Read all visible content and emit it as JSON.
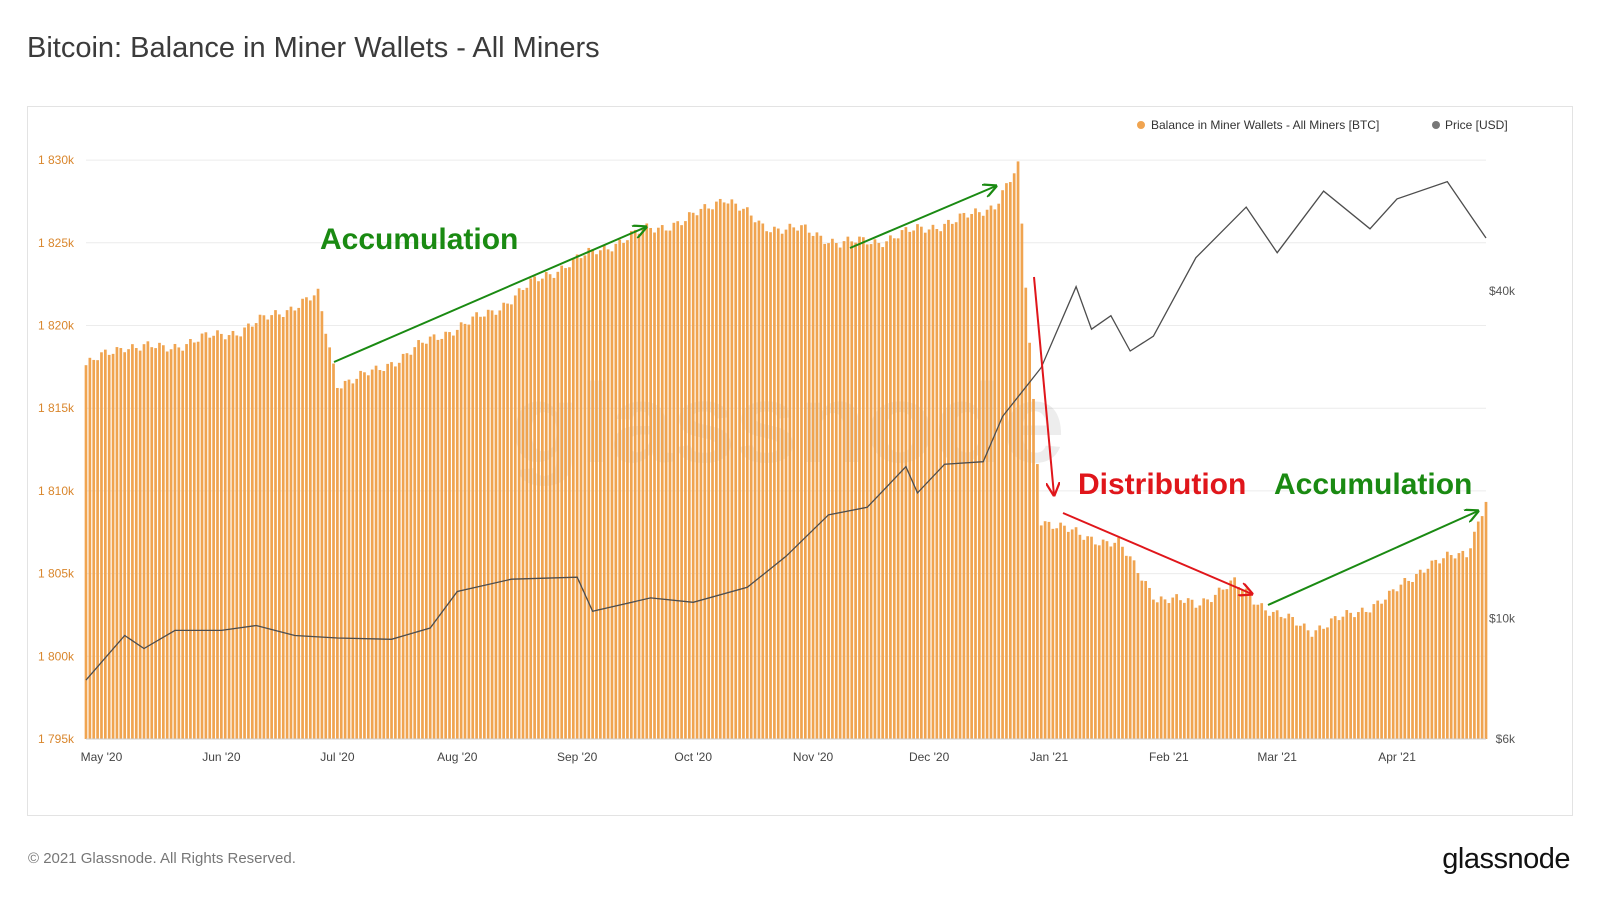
{
  "title": "Bitcoin: Balance in Miner Wallets - All Miners",
  "footer": "© 2021 Glassnode. All Rights Reserved.",
  "brand": "glassnode",
  "watermark": "glassnode",
  "annotations": [
    {
      "text": "Accumulation",
      "color": "#1a8a12"
    },
    {
      "text": "Distribution",
      "color": "#e0161b"
    },
    {
      "text": "Accumulation",
      "color": "#1a8a12"
    }
  ],
  "colors": {
    "bar": "#f0a450",
    "bar_label": "#d9862c",
    "price": "#4d4d4d",
    "accum": "#1a8a12",
    "distrib": "#e0161b"
  },
  "chart_data": {
    "type": "bar",
    "legend": [
      {
        "name": "Balance in Miner Wallets - All Miners [BTC]",
        "color": "#f0a450"
      },
      {
        "name": "Price [USD]",
        "color": "#777777"
      }
    ],
    "legend_position": "top-right",
    "grid": true,
    "x_ticks": [
      "May '20",
      "Jun '20",
      "Jul '20",
      "Aug '20",
      "Sep '20",
      "Oct '20",
      "Nov '20",
      "Dec '20",
      "Jan '21",
      "Feb '21",
      "Mar '21",
      "Apr '21"
    ],
    "y_left": {
      "ticks": [
        "1 795k",
        "1 800k",
        "1 805k",
        "1 810k",
        "1 815k",
        "1 820k",
        "1 825k",
        "1 830k"
      ],
      "ylim": [
        1795000,
        1832000
      ]
    },
    "y_right": {
      "ticks": [
        "$6k",
        "$10k",
        "$40k"
      ],
      "scale": "log",
      "ylim": [
        6000,
        80000
      ]
    },
    "x_range": [
      "2020-04-27",
      "2021-04-24"
    ],
    "series": [
      {
        "name": "Balance in Miner Wallets - All Miners [BTC]",
        "type": "bar",
        "points": [
          [
            "2020-04-27",
            1817600
          ],
          [
            "2020-05-07",
            1818800
          ],
          [
            "2020-05-17",
            1818600
          ],
          [
            "2020-05-27",
            1819200
          ],
          [
            "2020-06-06",
            1819700
          ],
          [
            "2020-06-16",
            1820800
          ],
          [
            "2020-06-26",
            1821800
          ],
          [
            "2020-07-01",
            1816500
          ],
          [
            "2020-07-11",
            1817200
          ],
          [
            "2020-07-21",
            1818600
          ],
          [
            "2020-07-31",
            1819800
          ],
          [
            "2020-08-10",
            1820800
          ],
          [
            "2020-08-20",
            1822500
          ],
          [
            "2020-08-30",
            1823800
          ],
          [
            "2020-09-09",
            1824800
          ],
          [
            "2020-09-19",
            1825800
          ],
          [
            "2020-09-29",
            1826300
          ],
          [
            "2020-10-09",
            1827800
          ],
          [
            "2020-10-19",
            1826000
          ],
          [
            "2020-10-29",
            1825800
          ],
          [
            "2020-11-08",
            1825000
          ],
          [
            "2020-11-18",
            1825100
          ],
          [
            "2020-11-28",
            1825800
          ],
          [
            "2020-12-08",
            1826300
          ],
          [
            "2020-12-18",
            1827300
          ],
          [
            "2020-12-24",
            1829500
          ],
          [
            "2020-12-30",
            1808300
          ],
          [
            "2021-01-09",
            1807300
          ],
          [
            "2021-01-19",
            1806800
          ],
          [
            "2021-01-29",
            1803500
          ],
          [
            "2021-02-08",
            1803200
          ],
          [
            "2021-02-18",
            1804400
          ],
          [
            "2021-02-28",
            1802600
          ],
          [
            "2021-03-10",
            1801600
          ],
          [
            "2021-03-20",
            1802500
          ],
          [
            "2021-03-30",
            1803600
          ],
          [
            "2021-04-09",
            1805600
          ],
          [
            "2021-04-19",
            1806200
          ],
          [
            "2021-04-24",
            1809500
          ]
        ]
      },
      {
        "name": "Price [USD]",
        "type": "line",
        "points": [
          [
            "2020-04-27",
            7700
          ],
          [
            "2020-05-07",
            9300
          ],
          [
            "2020-05-12",
            8800
          ],
          [
            "2020-05-20",
            9500
          ],
          [
            "2020-06-01",
            9500
          ],
          [
            "2020-06-10",
            9700
          ],
          [
            "2020-06-20",
            9300
          ],
          [
            "2020-07-01",
            9200
          ],
          [
            "2020-07-15",
            9150
          ],
          [
            "2020-07-25",
            9600
          ],
          [
            "2020-08-01",
            11200
          ],
          [
            "2020-08-15",
            11800
          ],
          [
            "2020-09-01",
            11900
          ],
          [
            "2020-09-05",
            10300
          ],
          [
            "2020-09-20",
            10900
          ],
          [
            "2020-10-01",
            10700
          ],
          [
            "2020-10-15",
            11400
          ],
          [
            "2020-10-25",
            13000
          ],
          [
            "2020-11-05",
            15500
          ],
          [
            "2020-11-15",
            16000
          ],
          [
            "2020-11-25",
            19000
          ],
          [
            "2020-11-28",
            17000
          ],
          [
            "2020-12-05",
            19200
          ],
          [
            "2020-12-15",
            19400
          ],
          [
            "2020-12-20",
            23500
          ],
          [
            "2020-12-30",
            28900
          ],
          [
            "2021-01-08",
            40700
          ],
          [
            "2021-01-12",
            34000
          ],
          [
            "2021-01-17",
            36000
          ],
          [
            "2021-01-22",
            31000
          ],
          [
            "2021-01-28",
            33000
          ],
          [
            "2021-02-08",
            46000
          ],
          [
            "2021-02-21",
            57000
          ],
          [
            "2021-03-01",
            47000
          ],
          [
            "2021-03-13",
            61000
          ],
          [
            "2021-03-25",
            52000
          ],
          [
            "2021-04-01",
            59000
          ],
          [
            "2021-04-14",
            63500
          ],
          [
            "2021-04-20",
            55000
          ],
          [
            "2021-04-24",
            50000
          ]
        ]
      }
    ]
  }
}
